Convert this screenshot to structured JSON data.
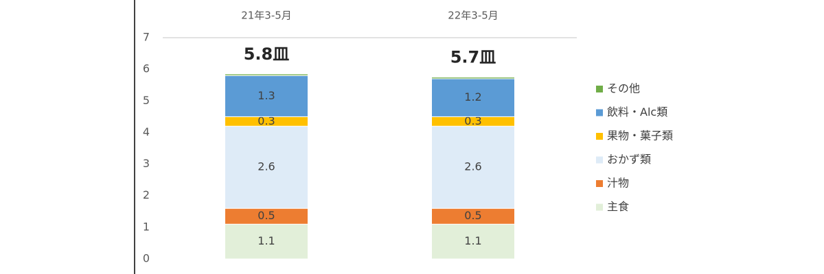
{
  "chart_data": {
    "type": "stacked-bar",
    "categories": [
      "21年3-5月",
      "22年3-5月"
    ],
    "totals": [
      "5.8皿",
      "5.7皿"
    ],
    "series": [
      {
        "name": "主食",
        "color": "#e2efd9",
        "values": [
          1.1,
          1.1
        ]
      },
      {
        "name": "汁物",
        "color": "#ed7d31",
        "values": [
          0.5,
          0.5
        ]
      },
      {
        "name": "おかず類",
        "color": "#deebf7",
        "values": [
          2.6,
          2.6
        ]
      },
      {
        "name": "果物・菓子類",
        "color": "#ffc000",
        "values": [
          0.3,
          0.3
        ]
      },
      {
        "name": "飲料・Alc類",
        "color": "#5b9bd5",
        "values": [
          1.3,
          1.2
        ]
      },
      {
        "name": "その他",
        "color": "#70ad47",
        "values": [
          0.05,
          0.05
        ]
      }
    ],
    "ylim": [
      0,
      7
    ],
    "yticks": [
      0,
      1,
      2,
      3,
      4,
      5,
      6,
      7
    ]
  }
}
